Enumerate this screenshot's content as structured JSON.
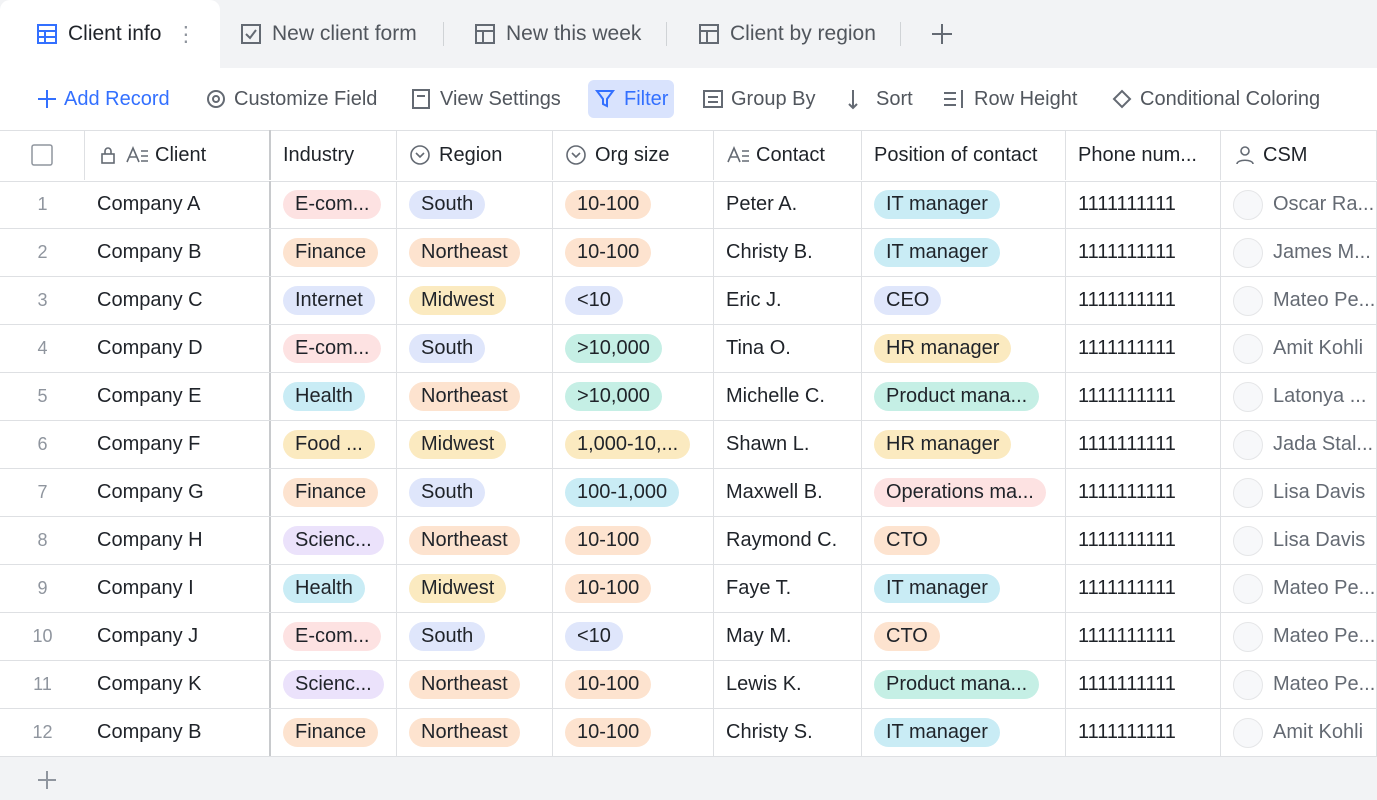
{
  "tabs": [
    "Client info",
    "New client form",
    "New this week",
    "Client by region"
  ],
  "toolbar": [
    "Add Record",
    "Customize Field",
    "View Settings",
    "Filter",
    "Group By",
    "Sort",
    "Row Height",
    "Conditional Coloring"
  ],
  "table": {
    "columns": [
      "Client",
      "Industry",
      "Region",
      "Org size",
      "Contact",
      "Position of contact",
      "Phone num...",
      "CSM"
    ],
    "rows": [
      {
        "num": 1,
        "cells": [
          "Company A",
          {
            "text": "E-com...",
            "color": "#fde2e2"
          },
          {
            "text": "South",
            "color": "#dfe6fb"
          },
          {
            "text": "10-100",
            "color": "#fde3cf"
          },
          "Peter A.",
          {
            "text": "IT manager",
            "color": "#c9ecf5"
          },
          "1111111111",
          "Oscar Ra..."
        ]
      },
      {
        "num": 2,
        "cells": [
          "Company B",
          {
            "text": "Finance",
            "color": "#fde3cf"
          },
          {
            "text": "Northeast",
            "color": "#fde3cf"
          },
          {
            "text": "10-100",
            "color": "#fde3cf"
          },
          "Christy B.",
          {
            "text": "IT manager",
            "color": "#c9ecf5"
          },
          "1111111111",
          "James M..."
        ]
      },
      {
        "num": 3,
        "cells": [
          "Company C",
          {
            "text": "Internet",
            "color": "#dfe6fb"
          },
          {
            "text": "Midwest",
            "color": "#fbeac0"
          },
          {
            "text": "<10",
            "color": "#dfe6fb"
          },
          "Eric J.",
          {
            "text": "CEO",
            "color": "#dfe6fb"
          },
          "1111111111",
          "Mateo Pe..."
        ]
      },
      {
        "num": 4,
        "cells": [
          "Company D",
          {
            "text": "E-com...",
            "color": "#fde2e2"
          },
          {
            "text": "South",
            "color": "#dfe6fb"
          },
          {
            "text": ">10,000",
            "color": "#c5efe5"
          },
          "Tina O.",
          {
            "text": "HR manager",
            "color": "#fbeac0"
          },
          "1111111111",
          "Amit Kohli"
        ]
      },
      {
        "num": 5,
        "cells": [
          "Company E",
          {
            "text": "Health",
            "color": "#c9ecf5"
          },
          {
            "text": "Northeast",
            "color": "#fde3cf"
          },
          {
            "text": ">10,000",
            "color": "#c5efe5"
          },
          "Michelle C.",
          {
            "text": "Product mana...",
            "color": "#c5efe5"
          },
          "1111111111",
          "Latonya ..."
        ]
      },
      {
        "num": 6,
        "cells": [
          "Company F",
          {
            "text": "Food ...",
            "color": "#fbeac0"
          },
          {
            "text": "Midwest",
            "color": "#fbeac0"
          },
          {
            "text": "1,000-10,...",
            "color": "#fbeac0"
          },
          "Shawn L.",
          {
            "text": "HR manager",
            "color": "#fbeac0"
          },
          "1111111111",
          "Jada Stal..."
        ]
      },
      {
        "num": 7,
        "cells": [
          "Company G",
          {
            "text": "Finance",
            "color": "#fde3cf"
          },
          {
            "text": "South",
            "color": "#dfe6fb"
          },
          {
            "text": "100-1,000",
            "color": "#c9ecf5"
          },
          "Maxwell B.",
          {
            "text": "Operations ma...",
            "color": "#fde2e2"
          },
          "1111111111",
          "Lisa Davis"
        ]
      },
      {
        "num": 8,
        "cells": [
          "Company H",
          {
            "text": "Scienc...",
            "color": "#ebe2fb"
          },
          {
            "text": "Northeast",
            "color": "#fde3cf"
          },
          {
            "text": "10-100",
            "color": "#fde3cf"
          },
          "Raymond C.",
          {
            "text": "CTO",
            "color": "#fde3cf"
          },
          "1111111111",
          "Lisa Davis"
        ]
      },
      {
        "num": 9,
        "cells": [
          "Company I",
          {
            "text": "Health",
            "color": "#c9ecf5"
          },
          {
            "text": "Midwest",
            "color": "#fbeac0"
          },
          {
            "text": "10-100",
            "color": "#fde3cf"
          },
          "Faye T.",
          {
            "text": "IT manager",
            "color": "#c9ecf5"
          },
          "1111111111",
          "Mateo Pe..."
        ]
      },
      {
        "num": 10,
        "cells": [
          "Company J",
          {
            "text": "E-com...",
            "color": "#fde2e2"
          },
          {
            "text": "South",
            "color": "#dfe6fb"
          },
          {
            "text": "<10",
            "color": "#dfe6fb"
          },
          "May M.",
          {
            "text": "CTO",
            "color": "#fde3cf"
          },
          "1111111111",
          "Mateo Pe..."
        ]
      },
      {
        "num": 11,
        "cells": [
          "Company K",
          {
            "text": "Scienc...",
            "color": "#ebe2fb"
          },
          {
            "text": "Northeast",
            "color": "#fde3cf"
          },
          {
            "text": "10-100",
            "color": "#fde3cf"
          },
          "Lewis K.",
          {
            "text": "Product mana...",
            "color": "#c5efe5"
          },
          "1111111111",
          "Mateo Pe..."
        ]
      },
      {
        "num": 12,
        "cells": [
          "Company B",
          {
            "text": "Finance",
            "color": "#fde3cf"
          },
          {
            "text": "Northeast",
            "color": "#fde3cf"
          },
          {
            "text": "10-100",
            "color": "#fde3cf"
          },
          "Christy S.",
          {
            "text": "IT manager",
            "color": "#c9ecf5"
          },
          "1111111111",
          "Amit Kohli"
        ]
      }
    ]
  }
}
